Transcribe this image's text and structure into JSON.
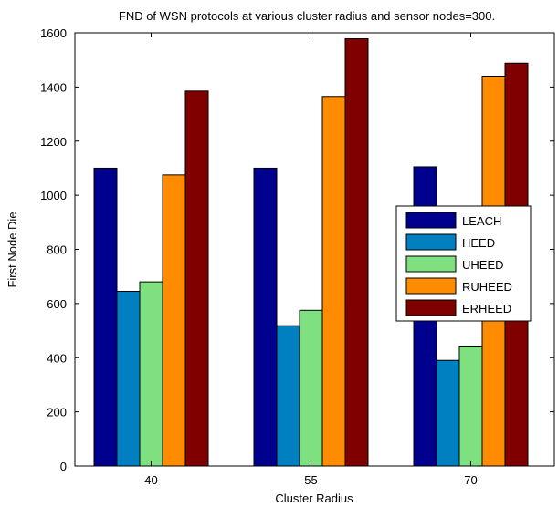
{
  "chart_data": {
    "type": "bar",
    "title": "FND of WSN  protocols at various cluster radius and sensor nodes=300.",
    "xlabel": "Cluster Radius",
    "ylabel": "First Node Die",
    "categories": [
      "40",
      "55",
      "70"
    ],
    "ylim": [
      0,
      1600
    ],
    "yticks": [
      0,
      200,
      400,
      600,
      800,
      1000,
      1200,
      1400,
      1600
    ],
    "grid": false,
    "legend_position": "right",
    "series": [
      {
        "name": "LEACH",
        "color": "#00008f",
        "values": [
          1100,
          1100,
          1105
        ]
      },
      {
        "name": "HEED",
        "color": "#0080c0",
        "values": [
          645,
          518,
          390
        ]
      },
      {
        "name": "UHEED",
        "color": "#7ee07e",
        "values": [
          680,
          575,
          443
        ]
      },
      {
        "name": "RUHEED",
        "color": "#ff8c00",
        "values": [
          1075,
          1365,
          1440
        ]
      },
      {
        "name": "ERHEED",
        "color": "#800000",
        "values": [
          1385,
          1578,
          1488
        ]
      }
    ]
  }
}
